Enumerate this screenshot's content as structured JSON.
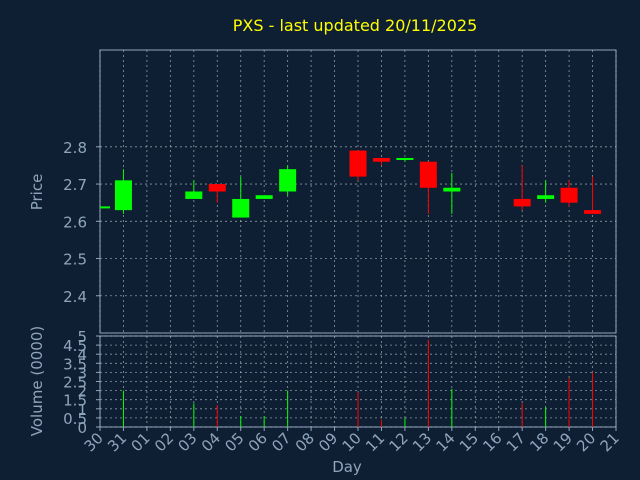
{
  "chart_data": {
    "type": "candlestick",
    "title": "PXS - last updated 20/11/2025",
    "xlabel": "Day",
    "colors": {
      "background": "#0f1f33",
      "title": "#ffff00",
      "text": "#8fa5bd",
      "frame": "#8fa5bd",
      "grid": "#c0c8d0",
      "up": "#00ff00",
      "down": "#ff0000"
    },
    "x_ticks": [
      "30",
      "31",
      "01",
      "02",
      "03",
      "04",
      "05",
      "06",
      "07",
      "08",
      "09",
      "10",
      "11",
      "12",
      "13",
      "14",
      "15",
      "16",
      "17",
      "18",
      "19",
      "20",
      "21"
    ],
    "price_panel": {
      "ylabel": "Price",
      "ylim": [
        2.3,
        3.06
      ],
      "yticks": [
        "2.4",
        "2.5",
        "2.6",
        "2.7",
        "2.8"
      ],
      "candles": [
        {
          "day": "30",
          "open": 2.64,
          "high": 2.64,
          "low": 2.64,
          "close": 2.64
        },
        {
          "day": "31",
          "open": 2.63,
          "high": 2.74,
          "low": 2.62,
          "close": 2.71
        },
        {
          "day": "03",
          "open": 2.66,
          "high": 2.71,
          "low": 2.66,
          "close": 2.68
        },
        {
          "day": "04",
          "open": 2.7,
          "high": 2.7,
          "low": 2.65,
          "close": 2.68
        },
        {
          "day": "05",
          "open": 2.61,
          "high": 2.72,
          "low": 2.61,
          "close": 2.66
        },
        {
          "day": "06",
          "open": 2.66,
          "high": 2.67,
          "low": 2.66,
          "close": 2.67
        },
        {
          "day": "07",
          "open": 2.68,
          "high": 2.75,
          "low": 2.67,
          "close": 2.74
        },
        {
          "day": "10",
          "open": 2.79,
          "high": 2.79,
          "low": 2.71,
          "close": 2.72
        },
        {
          "day": "11",
          "open": 2.77,
          "high": 2.77,
          "low": 2.75,
          "close": 2.76
        },
        {
          "day": "12",
          "open": 2.77,
          "high": 2.77,
          "low": 2.76,
          "close": 2.77
        },
        {
          "day": "13",
          "open": 2.76,
          "high": 2.76,
          "low": 2.62,
          "close": 2.69
        },
        {
          "day": "14",
          "open": 2.68,
          "high": 2.73,
          "low": 2.62,
          "close": 2.69
        },
        {
          "day": "17",
          "open": 2.66,
          "high": 2.75,
          "low": 2.63,
          "close": 2.64
        },
        {
          "day": "18",
          "open": 2.66,
          "high": 2.71,
          "low": 2.65,
          "close": 2.67
        },
        {
          "day": "19",
          "open": 2.69,
          "high": 2.71,
          "low": 2.64,
          "close": 2.65
        },
        {
          "day": "20",
          "open": 2.63,
          "high": 2.72,
          "low": 2.62,
          "close": 2.62
        }
      ]
    },
    "volume_panel": {
      "ylabel": "Volume (0000)",
      "ylim": [
        0,
        5
      ],
      "yticks": [
        "0",
        "0.5",
        "1",
        "1.5",
        "2",
        "2.5",
        "3",
        "3.5",
        "4",
        "4.5",
        "5"
      ],
      "bars": [
        {
          "day": "31",
          "value": 2.0,
          "dir": "up"
        },
        {
          "day": "03",
          "value": 1.3,
          "dir": "up"
        },
        {
          "day": "04",
          "value": 1.2,
          "dir": "down"
        },
        {
          "day": "05",
          "value": 0.6,
          "dir": "up"
        },
        {
          "day": "06",
          "value": 0.6,
          "dir": "up"
        },
        {
          "day": "07",
          "value": 2.0,
          "dir": "up"
        },
        {
          "day": "10",
          "value": 1.9,
          "dir": "down"
        },
        {
          "day": "11",
          "value": 0.4,
          "dir": "down"
        },
        {
          "day": "12",
          "value": 0.5,
          "dir": "up"
        },
        {
          "day": "13",
          "value": 4.8,
          "dir": "down"
        },
        {
          "day": "14",
          "value": 2.1,
          "dir": "up"
        },
        {
          "day": "17",
          "value": 1.3,
          "dir": "down"
        },
        {
          "day": "18",
          "value": 1.1,
          "dir": "up"
        },
        {
          "day": "19",
          "value": 2.7,
          "dir": "down"
        },
        {
          "day": "20",
          "value": 3.0,
          "dir": "down"
        }
      ]
    }
  }
}
